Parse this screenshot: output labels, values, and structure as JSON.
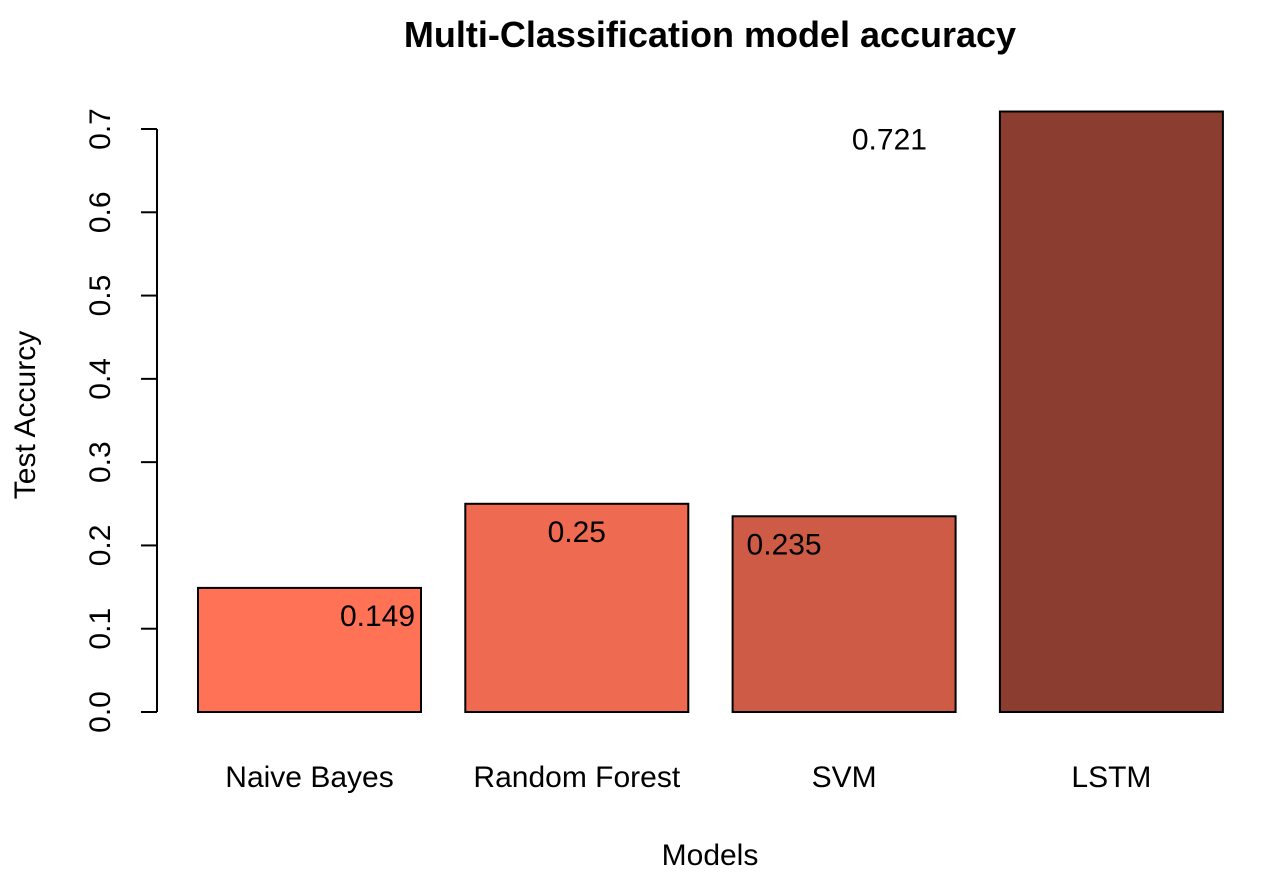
{
  "chart_data": {
    "type": "bar",
    "title": "Multi-Classification model accuracy",
    "xlabel": "Models",
    "ylabel": "Test Accurcy",
    "categories": [
      "Naive Bayes",
      "Random Forest",
      "SVM",
      "LSTM"
    ],
    "values": [
      0.149,
      0.25,
      0.235,
      0.721
    ],
    "value_labels": [
      "0.149",
      "0.25",
      "0.235",
      "0.721"
    ],
    "colors": [
      "#FF7256",
      "#EE6A50",
      "#CD5B45",
      "#8B3E2F"
    ],
    "ylim": [
      0,
      0.7
    ],
    "yticks": [
      0.0,
      0.1,
      0.2,
      0.3,
      0.4,
      0.5,
      0.6,
      0.7
    ],
    "ytick_labels": [
      "0.0",
      "0.1",
      "0.2",
      "0.3",
      "0.4",
      "0.5",
      "0.6",
      "0.7"
    ],
    "grid": false,
    "legend": "none"
  }
}
